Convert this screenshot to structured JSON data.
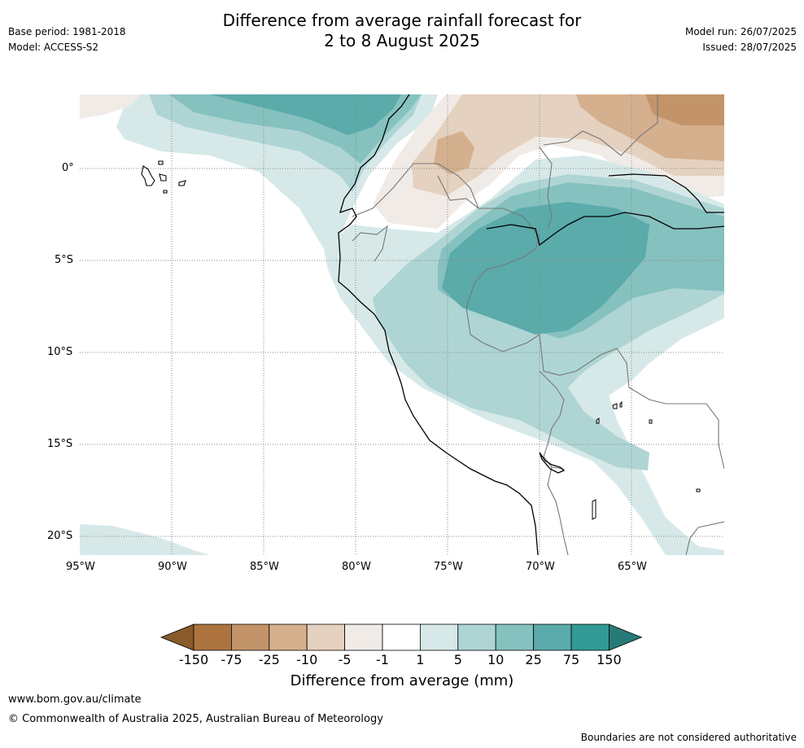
{
  "header": {
    "title_line1": "Difference from average rainfall forecast for",
    "title_line2": "2 to 8 August 2025",
    "base_period": "Base period: 1981-2018",
    "model": "Model: ACCESS-S2",
    "model_run": "Model run: 26/07/2025",
    "issued": "Issued: 28/07/2025"
  },
  "map": {
    "lat_labels": [
      "0°",
      "5°S",
      "10°S",
      "15°S",
      "20°S"
    ],
    "lon_labels": [
      "95°W",
      "90°W",
      "85°W",
      "80°W",
      "75°W",
      "70°W",
      "65°W"
    ]
  },
  "colorbar": {
    "title": "Difference from average (mm)",
    "boundaries": [
      "-150",
      "-75",
      "-25",
      "-10",
      "-5",
      "-1",
      "1",
      "5",
      "10",
      "25",
      "75",
      "150"
    ],
    "colors": [
      "#8a5a2b",
      "#ad7440",
      "#c39469",
      "#d5b08e",
      "#e5d1bf",
      "#f1ebe7",
      "#ffffff",
      "#d6e9e8",
      "#aed5d4",
      "#85c1bf",
      "#5aabaa",
      "#319996",
      "#267b78"
    ]
  },
  "footer": {
    "url": "www.bom.gov.au/climate",
    "copyright": "© Commonwealth of Australia 2025, Australian Bureau of Meteorology",
    "disclaimer": "Boundaries are not considered authoritative"
  }
}
